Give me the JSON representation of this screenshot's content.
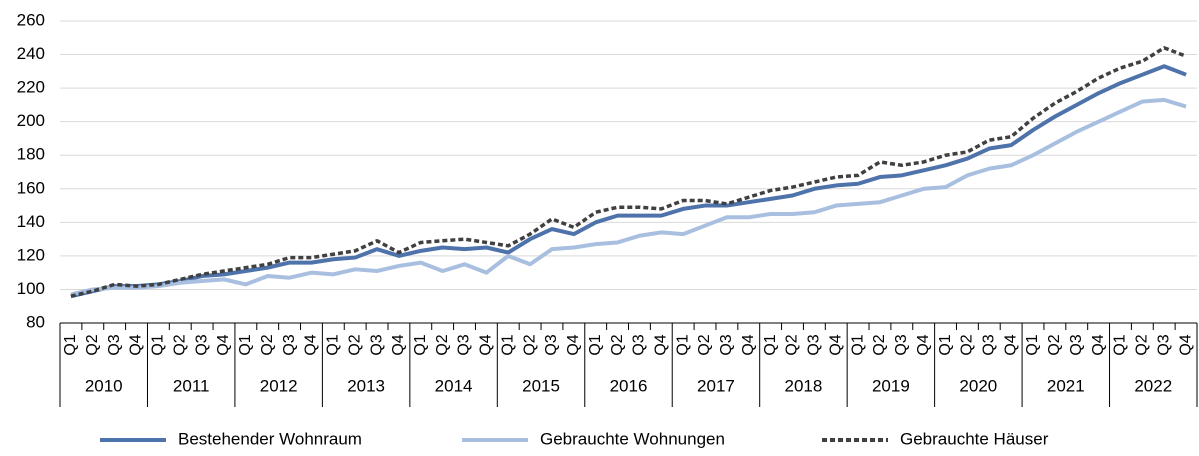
{
  "chart_data": {
    "type": "line",
    "categories": [
      "Q1",
      "Q2",
      "Q3",
      "Q4",
      "Q1",
      "Q2",
      "Q3",
      "Q4",
      "Q1",
      "Q2",
      "Q3",
      "Q4",
      "Q1",
      "Q2",
      "Q3",
      "Q4",
      "Q1",
      "Q2",
      "Q3",
      "Q4",
      "Q1",
      "Q2",
      "Q3",
      "Q4",
      "Q1",
      "Q2",
      "Q3",
      "Q4",
      "Q1",
      "Q2",
      "Q3",
      "Q4",
      "Q1",
      "Q2",
      "Q3",
      "Q4",
      "Q1",
      "Q2",
      "Q3",
      "Q4",
      "Q1",
      "Q2",
      "Q3",
      "Q4",
      "Q1",
      "Q2",
      "Q3",
      "Q4",
      "Q1",
      "Q2",
      "Q3",
      "Q4"
    ],
    "years": [
      "2010",
      "2011",
      "2012",
      "2013",
      "2014",
      "2015",
      "2016",
      "2017",
      "2018",
      "2019",
      "2020",
      "2021",
      "2022"
    ],
    "ylim": [
      80,
      260
    ],
    "yticks": [
      80,
      100,
      120,
      140,
      160,
      180,
      200,
      220,
      240,
      260
    ],
    "grid": true,
    "legend": "bottom",
    "series": [
      {
        "name": "Bestehender Wohnraum",
        "color": "#4e72aa",
        "dash": "solid",
        "values": [
          96,
          99,
          102,
          102,
          103,
          105,
          108,
          109,
          111,
          113,
          116,
          116,
          118,
          119,
          124,
          120,
          123,
          125,
          124,
          125,
          122,
          130,
          136,
          133,
          140,
          144,
          144,
          144,
          148,
          150,
          150,
          152,
          154,
          156,
          160,
          162,
          163,
          167,
          168,
          171,
          174,
          178,
          184,
          186,
          195,
          203,
          210,
          217,
          223,
          228,
          233,
          228
        ]
      },
      {
        "name": "Gebrauchte Wohnungen",
        "color": "#a8bfe0",
        "dash": "solid",
        "values": [
          97,
          100,
          101,
          101,
          102,
          104,
          105,
          106,
          103,
          108,
          107,
          110,
          109,
          112,
          111,
          114,
          116,
          111,
          115,
          110,
          120,
          115,
          124,
          125,
          127,
          128,
          132,
          134,
          133,
          138,
          143,
          143,
          145,
          145,
          146,
          150,
          151,
          152,
          156,
          160,
          161,
          168,
          172,
          174,
          180,
          187,
          194,
          200,
          206,
          212,
          213,
          209
        ]
      },
      {
        "name": "Gebrauchte Häuser",
        "color": "#404040",
        "dash": "dashed",
        "values": [
          96,
          99,
          103,
          102,
          103,
          106,
          109,
          111,
          113,
          115,
          119,
          119,
          121,
          123,
          129,
          122,
          128,
          129,
          130,
          128,
          126,
          133,
          142,
          137,
          146,
          149,
          149,
          148,
          153,
          153,
          151,
          155,
          159,
          161,
          164,
          167,
          168,
          176,
          174,
          176,
          180,
          182,
          189,
          191,
          202,
          211,
          218,
          226,
          232,
          236,
          244,
          239
        ]
      }
    ]
  }
}
